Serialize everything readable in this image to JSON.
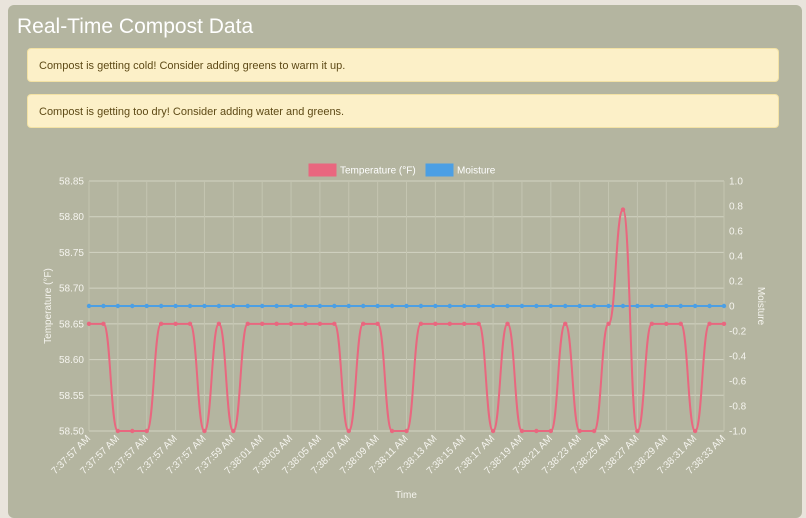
{
  "page": {
    "title": "Real-Time Compost Data"
  },
  "alerts": [
    "Compost is getting cold! Consider adding greens to warm it up.",
    "Compost is getting too dry! Consider adding water and greens."
  ],
  "colors": {
    "temperature": "#e9677f",
    "moisture": "#4c9fe4",
    "background": "#b4b5a0",
    "alert_bg": "#fcf0c8"
  },
  "chart_data": {
    "type": "line",
    "xlabel": "Time",
    "ylabel": "Temperature (°F)",
    "y2label": "Moisture",
    "legend_position": "top",
    "grid": true,
    "ylim": [
      58.5,
      58.85
    ],
    "y2lim": [
      -1.0,
      1.0
    ],
    "y_ticks": [
      "58.85",
      "58.80",
      "58.75",
      "58.70",
      "58.65",
      "58.60",
      "58.55",
      "58.50"
    ],
    "y2_ticks": [
      "1.0",
      "0.8",
      "0.6",
      "0.4",
      "0.2",
      "0",
      "-0.2",
      "-0.4",
      "-0.6",
      "-0.8",
      "-1.0"
    ],
    "x_tick_labels": [
      "7:37:57 AM",
      "7:37:57 AM",
      "7:37:57 AM",
      "7:37:57 AM",
      "7:37:57 AM",
      "7:37:59 AM",
      "7:38:01 AM",
      "7:38:03 AM",
      "7:38:05 AM",
      "7:38:07 AM",
      "7:38:09 AM",
      "7:38:11 AM",
      "7:38:13 AM",
      "7:38:15 AM",
      "7:38:17 AM",
      "7:38:19 AM",
      "7:38:21 AM",
      "7:38:23 AM",
      "7:38:25 AM",
      "7:38:27 AM",
      "7:38:29 AM",
      "7:38:31 AM",
      "7:38:33 AM"
    ],
    "series": [
      {
        "name": "Temperature (°F)",
        "axis": "left",
        "values": [
          58.65,
          58.65,
          58.5,
          58.5,
          58.5,
          58.65,
          58.65,
          58.65,
          58.5,
          58.65,
          58.5,
          58.65,
          58.65,
          58.65,
          58.65,
          58.65,
          58.65,
          58.65,
          58.5,
          58.65,
          58.65,
          58.5,
          58.5,
          58.65,
          58.65,
          58.65,
          58.65,
          58.65,
          58.5,
          58.65,
          58.5,
          58.5,
          58.5,
          58.65,
          58.5,
          58.5,
          58.65,
          58.81,
          58.5,
          58.65,
          58.65,
          58.65,
          58.5,
          58.65,
          58.65
        ]
      },
      {
        "name": "Moisture",
        "axis": "right",
        "values": [
          0,
          0,
          0,
          0,
          0,
          0,
          0,
          0,
          0,
          0,
          0,
          0,
          0,
          0,
          0,
          0,
          0,
          0,
          0,
          0,
          0,
          0,
          0,
          0,
          0,
          0,
          0,
          0,
          0,
          0,
          0,
          0,
          0,
          0,
          0,
          0,
          0,
          0,
          0,
          0,
          0,
          0,
          0,
          0,
          0
        ]
      }
    ]
  }
}
